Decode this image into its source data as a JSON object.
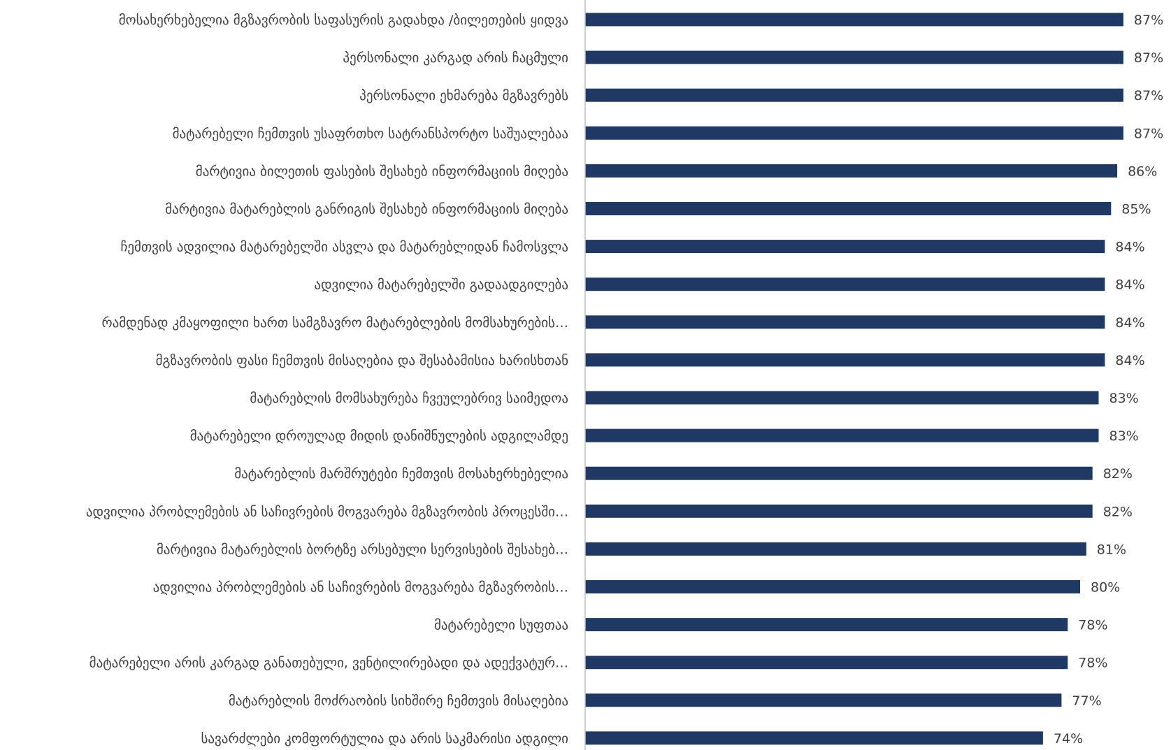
{
  "chart_data": {
    "type": "bar",
    "orientation": "horizontal",
    "title": "",
    "xlabel": "",
    "ylabel": "",
    "xlim": [
      0,
      100
    ],
    "grid": false,
    "legend": "none",
    "colors": {
      "bar": "#1f3864",
      "text": "#404040",
      "axis": "#bfbfbf"
    },
    "categories": [
      "მოსახერხებელია მგზავრობის საფასურის გადახდა /ბილეთების ყიდვა",
      "პერსონალი კარგად არის ჩაცმული",
      "პერსონალი ეხმარება მგზავრებს",
      "მატარებელი ჩემთვის უსაფრთხო სატრანსპორტო საშუალებაა",
      "მარტივია ბილეთის ფასების შესახებ ინფორმაციის მიღება",
      "მარტივია მატარებლის განრიგის შესახებ ინფორმაციის მიღება",
      "ჩემთვის ადვილია მატარებელში ასვლა და მატარებლიდან ჩამოსვლა",
      "ადვილია მატარებელში გადაადგილება",
      "რამდენად კმაყოფილი ხართ სამგზავრო მატარებლების მომსახურების…",
      "მგზავრობის ფასი ჩემთვის მისაღებია და შესაბამისია ხარისხთან",
      "მატარებლის მომსახურება ჩვეულებრივ საიმედოა",
      "მატარებელი დროულად მიდის დანიშნულების ადგილამდე",
      "მატარებლის მარშრუტები ჩემთვის მოსახერხებელია",
      "ადვილია პრობლემების ან საჩივრების  მოგვარება მგზავრობის პროცესში…",
      "მარტივია მატარებლის ბორტზე არსებული სერვისების შესახებ…",
      "ადვილია პრობლემების ან საჩივრების  მოგვარება მგზავრობის…",
      "მატარებელი სუფთაა",
      "მატარებელი არის კარგად განათებული, ვენტილირებადი და ადექვატურ…",
      "მატარებლის მოძრაობის სიხშირე ჩემთვის მისაღებია",
      "სავარძლები კომფორტულია და არის საკმარისი ადგილი"
    ],
    "values": [
      87,
      87,
      87,
      87,
      86,
      85,
      84,
      84,
      84,
      84,
      83,
      83,
      82,
      82,
      81,
      80,
      78,
      78,
      77,
      74
    ],
    "value_labels": [
      "87%",
      "87%",
      "87%",
      "87%",
      "86%",
      "85%",
      "84%",
      "84%",
      "84%",
      "84%",
      "83%",
      "83%",
      "82%",
      "82%",
      "81%",
      "80%",
      "78%",
      "78%",
      "77%",
      "74%"
    ]
  }
}
